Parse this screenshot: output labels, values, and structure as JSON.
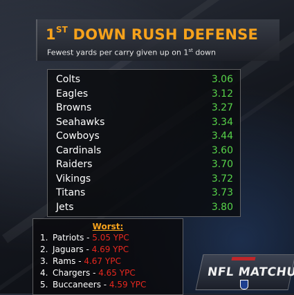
{
  "title": {
    "main_prefix": "1",
    "main_sup": "ST",
    "main_rest": " DOWN RUSH DEFENSE"
  },
  "subtitle": {
    "prefix": "Fewest yards per carry given up on 1",
    "sup": "st",
    "suffix": " down"
  },
  "best": [
    {
      "team": "Colts",
      "value": "3.06"
    },
    {
      "team": "Eagles",
      "value": "3.12"
    },
    {
      "team": "Browns",
      "value": "3.27"
    },
    {
      "team": "Seahawks",
      "value": "3.34"
    },
    {
      "team": "Cowboys",
      "value": "3.44"
    },
    {
      "team": "Cardinals",
      "value": "3.60"
    },
    {
      "team": "Raiders",
      "value": "3.70"
    },
    {
      "team": "Vikings",
      "value": "3.72"
    },
    {
      "team": "Titans",
      "value": "3.73"
    },
    {
      "team": "Jets",
      "value": "3.80"
    }
  ],
  "worst": {
    "heading": "Worst:",
    "items": [
      {
        "rank": "1.",
        "team": "Patriots",
        "sep": " - ",
        "ypc": "5.05 YPC"
      },
      {
        "rank": "2.",
        "team": "Jaguars",
        "sep": " - ",
        "ypc": "4.69 YPC"
      },
      {
        "rank": "3.",
        "team": "Rams",
        "sep": " - ",
        "ypc": "4.67 YPC"
      },
      {
        "rank": "4.",
        "team": "Chargers",
        "sep": " - ",
        "ypc": "4.65 YPC"
      },
      {
        "rank": "5.",
        "team": "Buccaneers",
        "sep": " - ",
        "ypc": "4.59 YPC"
      }
    ]
  },
  "logo": {
    "text": "NFL MATCHUP"
  },
  "colors": {
    "accent": "#f6a21c",
    "good": "#58d44a",
    "bad": "#e8281f"
  }
}
